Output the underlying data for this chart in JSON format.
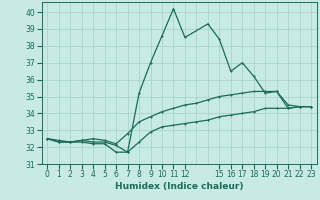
{
  "xlabel": "Humidex (Indice chaleur)",
  "ylabel": "",
  "bg_color": "#c8eae4",
  "grid_color": "#a8d5cc",
  "line_color": "#1a6b5a",
  "xlim": [
    -0.5,
    23.5
  ],
  "ylim": [
    31,
    40.6
  ],
  "yticks": [
    31,
    32,
    33,
    34,
    35,
    36,
    37,
    38,
    39,
    40
  ],
  "xtick_positions": [
    0,
    1,
    2,
    3,
    4,
    5,
    6,
    7,
    8,
    9,
    10,
    11,
    12,
    15,
    16,
    17,
    18,
    19,
    20,
    21,
    22,
    23
  ],
  "xtick_labels": [
    "0",
    "1",
    "2",
    "3",
    "4",
    "5",
    "6",
    "7",
    "8",
    "9",
    "10",
    "11",
    "12",
    "15",
    "16",
    "17",
    "18",
    "19",
    "20",
    "21",
    "22",
    "23"
  ],
  "series1_x": [
    0,
    1,
    2,
    3,
    4,
    5,
    6,
    7,
    8,
    9,
    10,
    11,
    12,
    14,
    15,
    16,
    17,
    18,
    19,
    20,
    21,
    22,
    23
  ],
  "series1_y": [
    32.5,
    32.3,
    32.3,
    32.4,
    32.3,
    32.3,
    32.1,
    31.7,
    35.2,
    37.0,
    38.6,
    40.2,
    38.5,
    39.3,
    38.4,
    36.5,
    37.0,
    36.2,
    35.2,
    35.3,
    34.3,
    34.4,
    34.4
  ],
  "series2_x": [
    0,
    1,
    2,
    3,
    4,
    5,
    6,
    7,
    8,
    9,
    10,
    11,
    12,
    13,
    14,
    15,
    16,
    17,
    18,
    19,
    20,
    21,
    22,
    23
  ],
  "series2_y": [
    32.5,
    32.3,
    32.3,
    32.3,
    32.2,
    32.2,
    31.7,
    31.7,
    32.3,
    32.9,
    33.2,
    33.3,
    33.4,
    33.5,
    33.6,
    33.8,
    33.9,
    34.0,
    34.1,
    34.3,
    34.3,
    34.3,
    34.4,
    34.4
  ],
  "series3_x": [
    0,
    1,
    2,
    3,
    4,
    5,
    6,
    7,
    8,
    9,
    10,
    11,
    12,
    13,
    14,
    15,
    16,
    17,
    18,
    19,
    20,
    21,
    22,
    23
  ],
  "series3_y": [
    32.5,
    32.4,
    32.3,
    32.4,
    32.5,
    32.4,
    32.2,
    32.8,
    33.5,
    33.8,
    34.1,
    34.3,
    34.5,
    34.6,
    34.8,
    35.0,
    35.1,
    35.2,
    35.3,
    35.3,
    35.3,
    34.5,
    34.4,
    34.4
  ],
  "marker_size": 2.0,
  "line_width": 0.9
}
